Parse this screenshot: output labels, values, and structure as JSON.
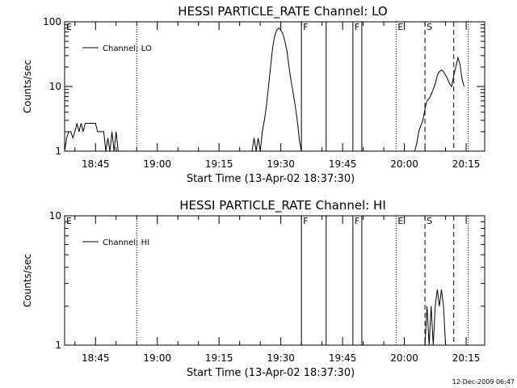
{
  "footer": {
    "timestamp": "12-Dec-2009 06:47"
  },
  "chart_data": [
    {
      "type": "line",
      "title": "HESSI PARTICLE_RATE Channel: LO",
      "ylabel": "Counts/sec",
      "xlabel": "Start Time (13-Apr-02 18:37:30)",
      "yscale": "log",
      "ylim": [
        1,
        100
      ],
      "xlim": [
        "18:37:30",
        "20:19:30"
      ],
      "xticks": [
        "18:45",
        "19:00",
        "19:15",
        "19:30",
        "19:45",
        "20:00",
        "20:15"
      ],
      "yticks": [
        "1",
        "10",
        "100"
      ],
      "legend": {
        "label": "Channel: LO",
        "position": "top-left"
      },
      "series": [
        {
          "name": "Channel: LO",
          "segments": [
            [
              [
                "18:37:30",
                1.0
              ],
              [
                "18:38:00",
                1.6
              ],
              [
                "18:38:30",
                2.0
              ],
              [
                "18:39:00",
                2.0
              ],
              [
                "18:39:30",
                1.6
              ],
              [
                "18:40:00",
                2.0
              ],
              [
                "18:40:30",
                2.7
              ],
              [
                "18:41:00",
                2.0
              ],
              [
                "18:41:30",
                2.7
              ],
              [
                "18:42:00",
                2.0
              ],
              [
                "18:42:30",
                2.7
              ],
              [
                "18:43:00",
                2.7
              ],
              [
                "18:43:30",
                2.7
              ],
              [
                "18:44:00",
                2.7
              ],
              [
                "18:44:30",
                2.7
              ],
              [
                "18:45:00",
                2.7
              ],
              [
                "18:45:30",
                2.0
              ],
              [
                "18:46:00",
                2.0
              ],
              [
                "18:46:30",
                2.0
              ],
              [
                "18:47:00",
                2.0
              ],
              [
                "18:47:30",
                1.0
              ],
              [
                "18:48:00",
                1.6
              ],
              [
                "18:48:30",
                1.0
              ],
              [
                "18:49:00",
                2.0
              ],
              [
                "18:49:30",
                1.0
              ],
              [
                "18:50:00",
                2.0
              ],
              [
                "18:50:30",
                1.0
              ]
            ],
            [
              [
                "19:23:00",
                1.0
              ],
              [
                "19:23:30",
                1.6
              ],
              [
                "19:24:00",
                1.0
              ],
              [
                "19:24:30",
                1.6
              ],
              [
                "19:25:00",
                1.0
              ],
              [
                "19:25:30",
                2.0
              ],
              [
                "19:26:00",
                3.0
              ],
              [
                "19:26:30",
                5.0
              ],
              [
                "19:27:00",
                10.0
              ],
              [
                "19:27:30",
                20.0
              ],
              [
                "19:28:00",
                40.0
              ],
              [
                "19:28:30",
                60.0
              ],
              [
                "19:29:00",
                75.0
              ],
              [
                "19:29:30",
                80.0
              ],
              [
                "19:30:00",
                75.0
              ],
              [
                "19:30:30",
                65.0
              ],
              [
                "19:31:00",
                50.0
              ],
              [
                "19:31:30",
                35.0
              ],
              [
                "19:32:00",
                20.0
              ],
              [
                "19:32:30",
                12.0
              ],
              [
                "19:33:00",
                8.0
              ],
              [
                "19:33:30",
                5.0
              ],
              [
                "19:34:00",
                3.0
              ],
              [
                "19:34:30",
                1.5
              ],
              [
                "19:35:00",
                1.0
              ]
            ],
            [
              [
                "20:02:30",
                1.0
              ],
              [
                "20:03:00",
                1.3
              ],
              [
                "20:03:30",
                2.0
              ],
              [
                "20:04:00",
                2.5
              ],
              [
                "20:04:30",
                3.0
              ],
              [
                "20:05:00",
                4.5
              ],
              [
                "20:05:30",
                6.0
              ],
              [
                "20:06:00",
                6.5
              ],
              [
                "20:06:30",
                7.5
              ],
              [
                "20:07:00",
                9.0
              ],
              [
                "20:07:30",
                11.0
              ],
              [
                "20:08:00",
                15.0
              ],
              [
                "20:08:30",
                17.0
              ],
              [
                "20:09:00",
                18.0
              ],
              [
                "20:09:30",
                17.0
              ],
              [
                "20:10:00",
                15.0
              ],
              [
                "20:10:30",
                13.0
              ],
              [
                "20:11:00",
                11.0
              ],
              [
                "20:11:30",
                10.0
              ],
              [
                "20:12:00",
                15.0
              ],
              [
                "20:12:30",
                20.0
              ],
              [
                "20:13:00",
                28.0
              ],
              [
                "20:13:30",
                22.0
              ],
              [
                "20:14:00",
                13.0
              ],
              [
                "20:14:30",
                10.0
              ]
            ]
          ]
        }
      ],
      "annotations": [
        {
          "label": "E",
          "time": "18:37:30",
          "style": "none"
        },
        {
          "label": "",
          "time": "18:55:00",
          "style": "dotted"
        },
        {
          "label": "F",
          "time": "19:35:00",
          "style": "solid"
        },
        {
          "label": "",
          "time": "19:41:00",
          "style": "solid"
        },
        {
          "label": "F",
          "time": "19:47:30",
          "style": "solid"
        },
        {
          "label": "",
          "time": "19:49:40",
          "style": "solid"
        },
        {
          "label": "E",
          "time": "19:58:00",
          "style": "dotted"
        },
        {
          "label": "S",
          "time": "20:05:00",
          "style": "dashed"
        },
        {
          "label": "",
          "time": "20:12:00",
          "style": "dashed"
        },
        {
          "label": "",
          "time": "20:15:30",
          "style": "dotted"
        }
      ]
    },
    {
      "type": "line",
      "title": "HESSI PARTICLE_RATE Channel: HI",
      "ylabel": "Counts/sec",
      "xlabel": "Start Time (13-Apr-02 18:37:30)",
      "yscale": "log",
      "ylim": [
        1,
        10
      ],
      "xlim": [
        "18:37:30",
        "20:19:30"
      ],
      "xticks": [
        "18:45",
        "19:00",
        "19:15",
        "19:30",
        "19:45",
        "20:00",
        "20:15"
      ],
      "yticks": [
        "1",
        "10"
      ],
      "legend": {
        "label": "Channel: HI",
        "position": "top-left"
      },
      "series": [
        {
          "name": "Channel: HI",
          "segments": [
            [
              [
                "20:05:00",
                1.0
              ],
              [
                "20:05:30",
                2.0
              ],
              [
                "20:06:00",
                1.0
              ],
              [
                "20:06:30",
                2.0
              ],
              [
                "20:07:00",
                1.0
              ],
              [
                "20:07:30",
                2.0
              ],
              [
                "20:08:00",
                2.7
              ],
              [
                "20:08:30",
                2.0
              ],
              [
                "20:09:00",
                2.7
              ],
              [
                "20:09:30",
                2.0
              ],
              [
                "20:10:00",
                1.0
              ]
            ]
          ]
        }
      ],
      "annotations": [
        {
          "label": "E",
          "time": "18:37:30",
          "style": "none"
        },
        {
          "label": "",
          "time": "18:55:00",
          "style": "dotted"
        },
        {
          "label": "F",
          "time": "19:35:00",
          "style": "solid"
        },
        {
          "label": "",
          "time": "19:41:00",
          "style": "solid"
        },
        {
          "label": "F",
          "time": "19:47:30",
          "style": "solid"
        },
        {
          "label": "",
          "time": "19:49:40",
          "style": "solid"
        },
        {
          "label": "E",
          "time": "19:58:00",
          "style": "dotted"
        },
        {
          "label": "S",
          "time": "20:05:00",
          "style": "dashed"
        },
        {
          "label": "",
          "time": "20:12:00",
          "style": "dashed"
        },
        {
          "label": "",
          "time": "20:15:30",
          "style": "dotted"
        }
      ]
    }
  ]
}
